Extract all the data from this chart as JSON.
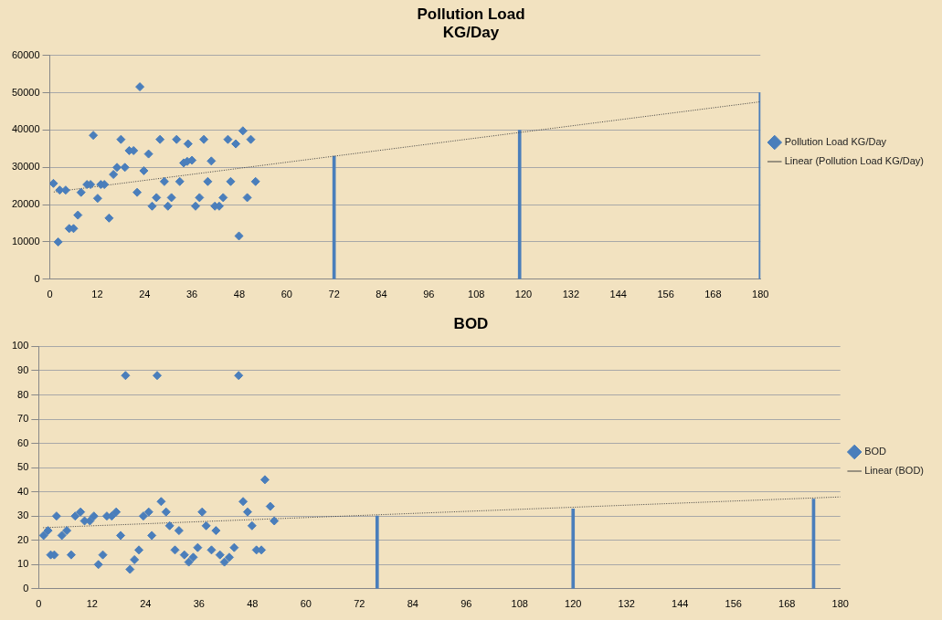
{
  "chart_data": [
    {
      "type": "scatter",
      "title": "Pollution Load\nKG/Day",
      "legend": "right",
      "grid": "y",
      "xlim": [
        0,
        180
      ],
      "xticks": [
        0,
        12,
        24,
        36,
        48,
        60,
        72,
        84,
        96,
        108,
        120,
        132,
        144,
        156,
        168,
        180
      ],
      "ylim": [
        0,
        60000
      ],
      "yticks": [
        0,
        10000,
        20000,
        30000,
        40000,
        50000,
        60000
      ],
      "series": [
        {
          "name": "Pollution Load KG/Day",
          "marker": "diamond",
          "color": "#4a7ebb",
          "x": [
            0.9,
            2.1,
            2.5,
            4,
            4.9,
            6,
            7.1,
            7.9,
            9.4,
            10.3,
            11,
            12.1,
            12.9,
            13.8,
            15,
            16.1,
            17,
            18,
            19,
            20.1,
            21.2,
            22.1,
            22.8,
            23.8,
            25,
            25.9,
            27,
            27.9,
            29,
            29.9,
            30.8,
            32.1,
            32.9,
            33.9,
            34.8,
            35,
            36,
            36.9,
            37.9,
            39,
            40,
            40.9,
            41.8,
            42.9,
            43.9,
            45.1,
            45.8,
            47.1,
            47.9,
            48.9,
            50,
            50.9,
            52.1
          ],
          "values": [
            25700,
            10000,
            23900,
            23900,
            13600,
            13600,
            17200,
            23300,
            25400,
            25400,
            38600,
            21700,
            25400,
            25400,
            16400,
            28100,
            30000,
            37500,
            30000,
            34500,
            34500,
            23300,
            51600,
            29100,
            33600,
            19600,
            21900,
            37500,
            26200,
            19600,
            21900,
            37500,
            26200,
            31200,
            31600,
            36300,
            31900,
            19600,
            21900,
            37500,
            26200,
            31700,
            19600,
            19600,
            21900,
            37500,
            26200,
            36300,
            11600,
            39800,
            21900,
            37500,
            26200
          ]
        },
        {
          "name": "Linear (Pollution Load KG/Day)",
          "type": "line",
          "marker": "none",
          "color": "#404040",
          "line_style": "dotted",
          "x": [
            1,
            180
          ],
          "values": [
            23400,
            47600
          ]
        },
        {
          "type": "bar",
          "color": "#4a7ebb",
          "x": [
            72,
            119,
            180
          ],
          "values": [
            33000,
            40000,
            50000
          ]
        }
      ]
    },
    {
      "type": "scatter",
      "title": "BOD",
      "legend": "right",
      "grid": "y",
      "xlim": [
        0,
        180
      ],
      "xticks": [
        0,
        12,
        24,
        36,
        48,
        60,
        72,
        84,
        96,
        108,
        120,
        132,
        144,
        156,
        168,
        180
      ],
      "ylim": [
        0,
        100
      ],
      "yticks": [
        0,
        10,
        20,
        30,
        40,
        50,
        60,
        70,
        80,
        90,
        100
      ],
      "series": [
        {
          "name": "BOD",
          "marker": "diamond",
          "color": "#4a7ebb",
          "x": [
            1.1,
            2.1,
            2.7,
            3.5,
            4,
            5.2,
            6.3,
            7.3,
            8.2,
            9.4,
            10.3,
            11.5,
            12.4,
            13.4,
            14.4,
            15.3,
            16.4,
            17.4,
            18.4,
            19.5,
            20.5,
            21.5,
            22.5,
            23.5,
            24.7,
            25.4,
            26.6,
            27.5,
            28.6,
            29.4,
            30.6,
            31.5,
            32.7,
            33.7,
            34.7,
            35.7,
            36.7,
            37.6,
            38.8,
            39.8,
            40.7,
            41.7,
            42.8,
            43.9,
            44.9,
            45.9,
            46.9,
            47.9,
            48.9,
            50,
            50.8,
            52,
            52.9
          ],
          "values": [
            22,
            24,
            14,
            14,
            30,
            22,
            24,
            14,
            30,
            31.7,
            28,
            28,
            30,
            10,
            14,
            30,
            30,
            31.7,
            22,
            88,
            8,
            12,
            16,
            30,
            31.7,
            22,
            88,
            36,
            31.7,
            26,
            16,
            24,
            14,
            11,
            13,
            17,
            31.7,
            26,
            16,
            24,
            14,
            11,
            13,
            17,
            88,
            36,
            31.7,
            26,
            16,
            16,
            45,
            34,
            28
          ]
        },
        {
          "name": "Linear (BOD)",
          "type": "line",
          "marker": "none",
          "color": "#404040",
          "line_style": "dotted",
          "x": [
            1,
            180
          ],
          "values": [
            25.2,
            37.9
          ]
        },
        {
          "type": "bar",
          "color": "#4a7ebb",
          "x": [
            76,
            120,
            174
          ],
          "values": [
            30,
            33,
            37
          ]
        }
      ]
    }
  ]
}
